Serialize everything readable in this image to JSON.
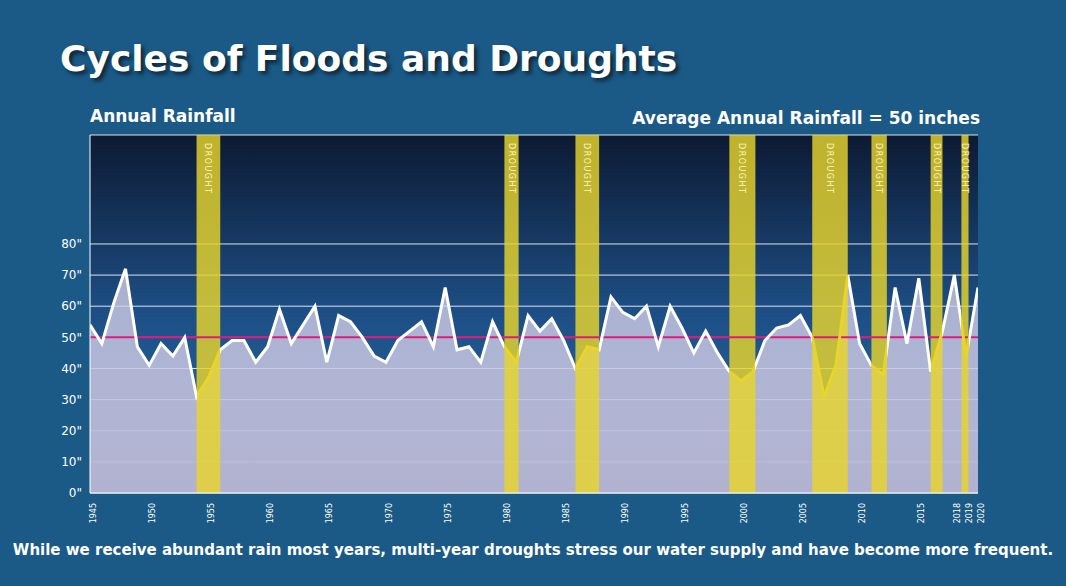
{
  "chart_data": {
    "type": "line",
    "title": "Cycles of Floods and Droughts",
    "subtitle": "Annual Rainfall",
    "caption": "While we receive abundant rain most years, multi-year droughts stress our water supply and have become more frequent.",
    "x": [
      1945,
      1946,
      1947,
      1948,
      1949,
      1950,
      1951,
      1952,
      1953,
      1954,
      1955,
      1956,
      1957,
      1958,
      1959,
      1960,
      1961,
      1962,
      1963,
      1964,
      1965,
      1966,
      1967,
      1968,
      1969,
      1970,
      1971,
      1972,
      1973,
      1974,
      1975,
      1976,
      1977,
      1978,
      1979,
      1980,
      1981,
      1982,
      1983,
      1984,
      1985,
      1986,
      1987,
      1988,
      1989,
      1990,
      1991,
      1992,
      1993,
      1994,
      1995,
      1996,
      1997,
      1998,
      1999,
      2000,
      2001,
      2002,
      2003,
      2004,
      2005,
      2006,
      2007,
      2008,
      2009,
      2010,
      2011,
      2012,
      2013,
      2014,
      2015,
      2016,
      2017,
      2018,
      2019,
      2020
    ],
    "values": [
      54,
      48,
      61,
      72,
      47,
      41,
      48,
      44,
      50,
      31,
      37,
      46,
      49,
      49,
      42,
      47,
      59,
      48,
      54,
      60,
      42,
      57,
      55,
      50,
      44,
      42,
      49,
      52,
      55,
      47,
      66,
      46,
      47,
      42,
      55,
      47,
      42,
      57,
      52,
      56,
      49,
      40,
      47,
      46,
      63,
      58,
      56,
      60,
      47,
      60,
      53,
      45,
      52,
      45,
      39,
      36,
      39,
      49,
      53,
      54,
      57,
      50,
      31,
      41,
      70,
      48,
      41,
      38,
      66,
      48,
      69,
      39,
      52,
      70,
      44,
      66
    ],
    "color": "#ffffff",
    "average": {
      "value": 50,
      "label": "Average Annual Rainfall = 50 inches",
      "color": "#e0197d"
    },
    "droughts": [
      {
        "start": 1954,
        "end": 1956,
        "label": "DROUGHT",
        "color": "#e8d42c"
      },
      {
        "start": 1980,
        "end": 1981.2,
        "label": "DROUGHT",
        "color": "#e8d42c"
      },
      {
        "start": 1986,
        "end": 1988,
        "label": "DROUGHT",
        "color": "#e8d42c"
      },
      {
        "start": 1999,
        "end": 2001.2,
        "label": "DROUGHT",
        "color": "#e8d42c"
      },
      {
        "start": 2006,
        "end": 2009,
        "label": "DROUGHT",
        "color": "#e8d42c"
      },
      {
        "start": 2011,
        "end": 2012.3,
        "label": "DROUGHT",
        "color": "#e8d42c"
      },
      {
        "start": 2016,
        "end": 2017,
        "label": "DROUGHT",
        "color": "#e8d42c"
      },
      {
        "start": 2018.6,
        "end": 2019.2,
        "label": "DROUGHT",
        "color": "#e8d42c"
      }
    ],
    "xlim": [
      1945,
      2020
    ],
    "xticks": [
      1945,
      1950,
      1955,
      1960,
      1965,
      1970,
      1975,
      1980,
      1985,
      1990,
      1995,
      2000,
      2005,
      2010,
      2015,
      2018,
      2019,
      2020
    ],
    "ylim": [
      0,
      115
    ],
    "yticks": [
      {
        "value": 0,
        "label": "0\""
      },
      {
        "value": 10,
        "label": "10\""
      },
      {
        "value": 20,
        "label": "20\""
      },
      {
        "value": 30,
        "label": "30\""
      },
      {
        "value": 40,
        "label": "40\""
      },
      {
        "value": 50,
        "label": "50\""
      },
      {
        "value": 60,
        "label": "60\""
      },
      {
        "value": 70,
        "label": "70\""
      },
      {
        "value": 80,
        "label": "80\""
      }
    ],
    "grid": true
  }
}
